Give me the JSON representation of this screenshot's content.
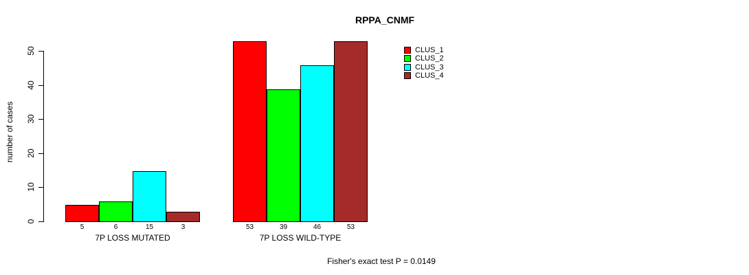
{
  "chart_data": {
    "type": "bar",
    "title": "RPPA_CNMF",
    "ylabel": "number of cases",
    "xlabel": "",
    "annotation": "Fisher's exact test P = 0.0149",
    "ylim": [
      0,
      55
    ],
    "yticks": [
      0,
      10,
      20,
      30,
      40,
      50
    ],
    "grid": false,
    "legend_position": "top-right",
    "bar_value_labels_shown": true,
    "categories": [
      "7P LOSS MUTATED",
      "7P LOSS WILD-TYPE"
    ],
    "series": [
      {
        "name": "CLUS_1",
        "color": "#ff0000",
        "values": [
          5,
          53
        ]
      },
      {
        "name": "CLUS_2",
        "color": "#00ff00",
        "values": [
          6,
          39
        ]
      },
      {
        "name": "CLUS_3",
        "color": "#00ffff",
        "values": [
          15,
          46
        ]
      },
      {
        "name": "CLUS_4",
        "color": "#a52a2a",
        "values": [
          3,
          53
        ]
      }
    ]
  }
}
